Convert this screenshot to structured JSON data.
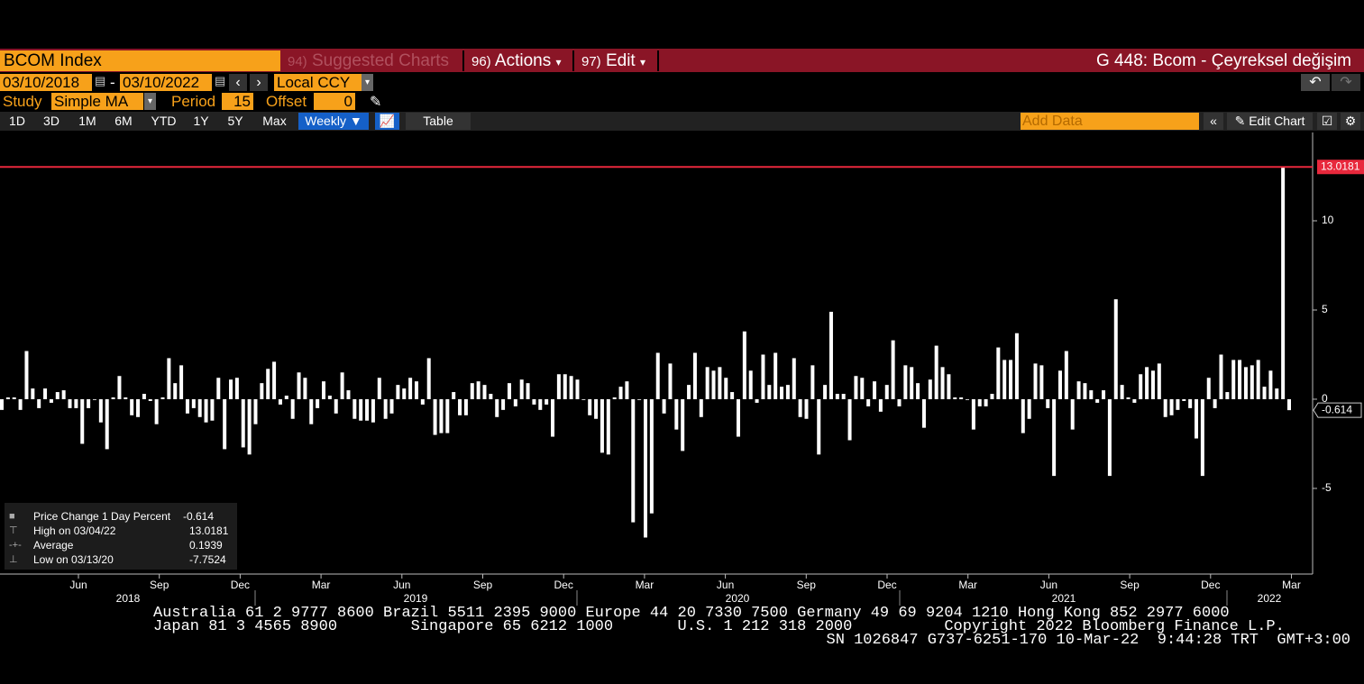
{
  "header": {
    "ticker": "BCOM Index",
    "menu": [
      {
        "num": "94)",
        "label": "Suggested Charts"
      },
      {
        "num": "96)",
        "label": "Actions"
      },
      {
        "num": "97)",
        "label": "Edit"
      }
    ],
    "title": "G 448: Bcom - Çeyreksel değişim"
  },
  "controls": {
    "start": "03/10/2018",
    "separator": "-",
    "end": "03/10/2022",
    "currency": "Local CCY",
    "study_label": "Study",
    "study": "Simple MA",
    "period_label": "Period",
    "period": 15,
    "offset_label": "Offset",
    "offset": 0
  },
  "toolbar": {
    "ranges": [
      "1D",
      "3D",
      "1M",
      "6M",
      "YTD",
      "1Y",
      "5Y",
      "Max"
    ],
    "frequency": "Weekly ▼",
    "table": "Table",
    "add_data": "Add Data",
    "edit_chart": "Edit Chart"
  },
  "chart_data": {
    "type": "bar",
    "color": "#ffffff",
    "high_line_color": "#e8283c",
    "values": [
      -0.6,
      0.1,
      0.1,
      -0.6,
      2.7,
      0.6,
      -0.5,
      0.6,
      -0.2,
      0.4,
      0.5,
      -0.5,
      -0.5,
      -2.5,
      -0.5,
      0.0,
      -1.3,
      -2.8,
      0.1,
      1.3,
      0.1,
      -0.9,
      -1.0,
      0.3,
      -0.1,
      -1.4,
      0.1,
      2.3,
      0.9,
      1.9,
      -0.8,
      -0.5,
      -1.0,
      -1.3,
      -1.2,
      1.2,
      -2.8,
      1.1,
      1.2,
      -2.7,
      -3.1,
      -1.4,
      0.9,
      1.7,
      2.1,
      -0.3,
      0.2,
      -1.1,
      1.5,
      1.2,
      -1.4,
      -0.5,
      1.0,
      0.2,
      -0.8,
      1.5,
      0.5,
      -1.1,
      -1.2,
      -1.2,
      -1.3,
      1.2,
      -1.1,
      -0.8,
      0.8,
      0.6,
      1.2,
      1.0,
      -0.3,
      2.3,
      -2.0,
      -1.9,
      -1.9,
      0.4,
      -0.9,
      -0.9,
      0.9,
      1.0,
      0.8,
      0.3,
      -1.0,
      -0.6,
      0.9,
      -0.4,
      1.1,
      0.9,
      -0.3,
      -0.6,
      -0.3,
      -2.1,
      1.4,
      1.4,
      1.3,
      1.1,
      0.0,
      -0.9,
      -1.1,
      -3.0,
      -3.1,
      0.1,
      0.7,
      1.0,
      -6.9,
      0.0,
      -7.7524,
      -6.4,
      2.6,
      -0.8,
      2.0,
      -1.7,
      -2.9,
      0.8,
      2.6,
      -1.0,
      1.8,
      1.6,
      1.8,
      1.2,
      0.4,
      -2.1,
      3.8,
      1.6,
      -0.2,
      2.5,
      0.8,
      2.6,
      0.7,
      0.8,
      2.3,
      -1.0,
      -1.1,
      1.9,
      -3.1,
      0.8,
      4.9,
      0.3,
      0.3,
      -2.3,
      1.3,
      1.2,
      -0.4,
      1.0,
      -0.7,
      0.8,
      3.3,
      -0.4,
      1.9,
      1.8,
      0.9,
      -1.6,
      1.1,
      3.0,
      1.8,
      1.4,
      0.1,
      0.1,
      0.0,
      -1.7,
      -0.4,
      -0.4,
      0.3,
      2.9,
      2.2,
      2.2,
      3.7,
      -1.9,
      -1.1,
      2.0,
      1.9,
      -0.5,
      -4.3,
      1.6,
      2.7,
      -1.7,
      1.0,
      0.9,
      0.5,
      -0.2,
      0.5,
      -4.3,
      5.6,
      0.8,
      0.1,
      -0.2,
      1.4,
      1.8,
      1.6,
      2.0,
      -1.0,
      -0.9,
      -0.6,
      -0.1,
      -0.5,
      -2.2,
      -4.3,
      1.2,
      -0.5,
      2.5,
      0.4,
      2.2,
      2.2,
      1.8,
      1.9,
      2.2,
      0.7,
      1.6,
      0.6,
      13.0181,
      -0.614
    ],
    "ylim": [
      -9.8,
      14.95
    ],
    "yticks": [
      -5,
      0,
      5,
      10
    ],
    "xticks": [
      "Jun",
      "Sep",
      "Dec",
      "Mar",
      "Jun",
      "Sep",
      "Dec",
      "Mar",
      "Jun",
      "Sep",
      "Dec",
      "Mar",
      "Jun",
      "Sep",
      "Dec",
      "Mar"
    ],
    "years": [
      "2018",
      "2019",
      "2020",
      "2021",
      "2022"
    ],
    "legend": [
      {
        "name": "Price Change 1 Day Percent",
        "value": -0.614
      },
      {
        "name": "High on 03/04/22",
        "value": 13.0181
      },
      {
        "name": "Average",
        "value": 0.1939
      },
      {
        "name": "Low on 03/13/20",
        "value": -7.7524
      }
    ]
  },
  "footer": {
    "lines": [
      "Australia 61 2 9777 8600 Brazil 5511 2395 9000 Europe 44 20 7330 7500 Germany 49 69 9204 1210 Hong Kong 852 2977 6000",
      "Japan 81 3 4565 8900        Singapore 65 6212 1000       U.S. 1 212 318 2000          Copyright 2022 Bloomberg Finance L.P.",
      "SN 1026847 G737-6251-170 10-Mar-22  9:44:28 TRT  GMT+3:00"
    ]
  }
}
